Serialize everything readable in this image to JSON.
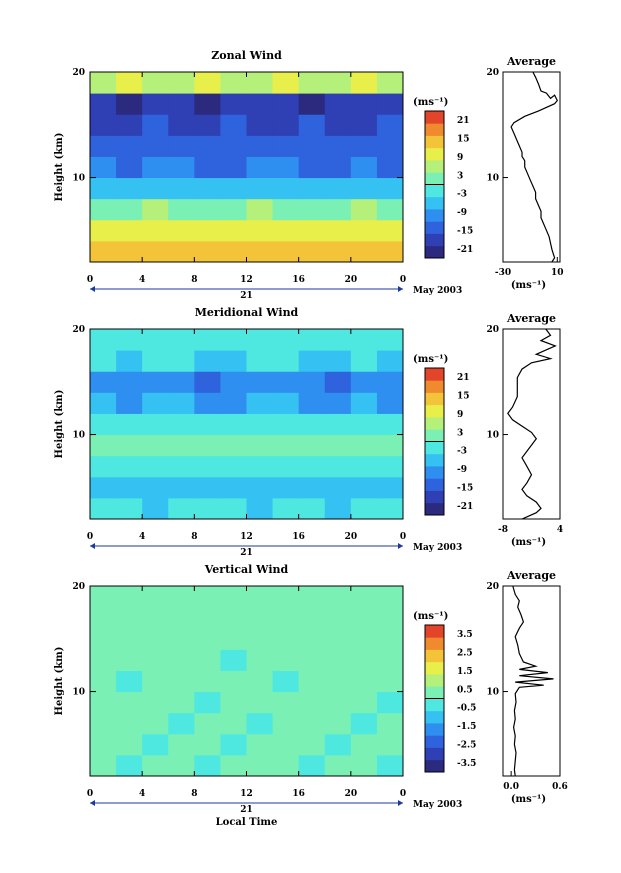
{
  "chart_data": [
    {
      "type": "heatmap",
      "title": "Zonal Wind",
      "ylabel": "Height (km)",
      "xlabel": "",
      "x_ticks": [
        "0",
        "4",
        "8",
        "12",
        "16",
        "20",
        "0"
      ],
      "y_ticks": [
        "20",
        "10"
      ],
      "xlim": [
        0,
        24
      ],
      "ylim": [
        2,
        20
      ],
      "date_label": "21",
      "month_label": "May 2003",
      "colorbar": {
        "unit_label": "(ms⁻¹)",
        "ticks": [
          "21",
          "15",
          "9",
          "3",
          "-3",
          "-9",
          "-15",
          "-21"
        ],
        "range": [
          -24,
          24
        ]
      },
      "profile": {
        "title": "Average",
        "x_ticks": [
          "-30",
          "10"
        ],
        "y_ticks": [
          "20",
          "10"
        ],
        "xlim": [
          -30,
          12
        ],
        "unit_label": "(ms⁻¹)",
        "points": [
          [
            -8,
            20
          ],
          [
            -6,
            19.5
          ],
          [
            -4,
            18.9
          ],
          [
            -2,
            18.2
          ],
          [
            2,
            18.0
          ],
          [
            5,
            17.5
          ],
          [
            8,
            17.8
          ],
          [
            10,
            17.3
          ],
          [
            8,
            17.0
          ],
          [
            -4,
            16.3
          ],
          [
            -14,
            15.8
          ],
          [
            -22,
            15.2
          ],
          [
            -24,
            14.8
          ],
          [
            -22,
            14.2
          ],
          [
            -20,
            13.6
          ],
          [
            -18,
            13.0
          ],
          [
            -16,
            12.4
          ],
          [
            -16,
            12.0
          ],
          [
            -14,
            11.6
          ],
          [
            -14,
            11.0
          ],
          [
            -12,
            10.4
          ],
          [
            -10,
            9.8
          ],
          [
            -8,
            9.2
          ],
          [
            -6,
            8.6
          ],
          [
            -6,
            8.0
          ],
          [
            -4,
            7.4
          ],
          [
            -2,
            6.8
          ],
          [
            -2,
            6.2
          ],
          [
            0,
            5.6
          ],
          [
            2,
            5.0
          ],
          [
            4,
            4.4
          ],
          [
            5,
            3.8
          ],
          [
            6,
            3.2
          ],
          [
            7,
            2.8
          ],
          [
            8,
            2.4
          ],
          [
            6,
            2.0
          ]
        ]
      },
      "field": {
        "x_hours": [
          0,
          2,
          4,
          6,
          8,
          10,
          12,
          14,
          16,
          18,
          20,
          22
        ],
        "heights_km": [
          2,
          4,
          6,
          8,
          10,
          12,
          14,
          16,
          18
        ],
        "values": [
          [
            14,
            13,
            12,
            13,
            14,
            13,
            12,
            13,
            14,
            13,
            12,
            13
          ],
          [
            9,
            8,
            9,
            10,
            9,
            8,
            9,
            10,
            9,
            8,
            9,
            8
          ],
          [
            3,
            2,
            4,
            3,
            2,
            3,
            4,
            3,
            2,
            3,
            4,
            3
          ],
          [
            -6,
            -7,
            -5,
            -6,
            -8,
            -7,
            -6,
            -5,
            -7,
            -8,
            -6,
            -7
          ],
          [
            -12,
            -13,
            -11,
            -12,
            -14,
            -13,
            -12,
            -11,
            -13,
            -14,
            -12,
            -13
          ],
          [
            -15,
            -14,
            -16,
            -15,
            -13,
            -14,
            -16,
            -15,
            -14,
            -13,
            -15,
            -16
          ],
          [
            -18,
            -17,
            -16,
            -18,
            -17,
            -16,
            -18,
            -17,
            -16,
            -18,
            -17,
            -16
          ],
          [
            -20,
            -21,
            -20,
            -19,
            -21,
            -20,
            -19,
            -20,
            -21,
            -20,
            -19,
            -20
          ],
          [
            6,
            8,
            5,
            7,
            9,
            6,
            5,
            8,
            7,
            6,
            9,
            7
          ]
        ]
      }
    },
    {
      "type": "heatmap",
      "title": "Meridional Wind",
      "ylabel": "Height (km)",
      "xlabel": "",
      "x_ticks": [
        "0",
        "4",
        "8",
        "12",
        "16",
        "20",
        "0"
      ],
      "y_ticks": [
        "20",
        "10"
      ],
      "xlim": [
        0,
        24
      ],
      "ylim": [
        2,
        20
      ],
      "date_label": "21",
      "month_label": "May 2003",
      "colorbar": {
        "unit_label": "(ms⁻¹)",
        "ticks": [
          "21",
          "15",
          "9",
          "3",
          "-3",
          "-9",
          "-15",
          "-21"
        ],
        "range": [
          -24,
          24
        ]
      },
      "profile": {
        "title": "Average",
        "x_ticks": [
          "-8",
          "4"
        ],
        "y_ticks": [
          "20",
          "10"
        ],
        "xlim": [
          -8,
          4
        ],
        "unit_label": "(ms⁻¹)",
        "points": [
          [
            1,
            20
          ],
          [
            2,
            19.4
          ],
          [
            0,
            18.9
          ],
          [
            3,
            18.4
          ],
          [
            1,
            18.0
          ],
          [
            -1,
            17.6
          ],
          [
            2,
            17.2
          ],
          [
            -2,
            16.8
          ],
          [
            -4,
            16.2
          ],
          [
            -5,
            15.4
          ],
          [
            -5,
            14.6
          ],
          [
            -5,
            13.6
          ],
          [
            -6,
            12.6
          ],
          [
            -7,
            12.0
          ],
          [
            -6,
            11.4
          ],
          [
            -4,
            10.8
          ],
          [
            -2,
            10.2
          ],
          [
            -1,
            9.6
          ],
          [
            -2,
            9.0
          ],
          [
            -3,
            8.4
          ],
          [
            -4,
            7.8
          ],
          [
            -3,
            7.0
          ],
          [
            -2,
            6.2
          ],
          [
            -3,
            5.4
          ],
          [
            -4,
            4.8
          ],
          [
            -3,
            4.2
          ],
          [
            -1,
            3.6
          ],
          [
            0,
            3.0
          ],
          [
            -1,
            2.6
          ],
          [
            -3,
            2.2
          ],
          [
            -4,
            2.0
          ]
        ]
      },
      "field": {
        "x_hours": [
          0,
          2,
          4,
          6,
          8,
          10,
          12,
          14,
          16,
          18,
          20,
          22
        ],
        "heights_km": [
          2,
          4,
          6,
          8,
          10,
          12,
          14,
          16,
          18
        ],
        "values": [
          [
            -4,
            -3,
            -5,
            -4,
            -3,
            -4,
            -5,
            -3,
            -4,
            -5,
            -4,
            -3
          ],
          [
            -6,
            -5,
            -7,
            -6,
            -5,
            -6,
            -7,
            -5,
            -6,
            -7,
            -6,
            -5
          ],
          [
            -2,
            -1,
            -3,
            -2,
            -1,
            -2,
            -3,
            -1,
            -2,
            -3,
            -2,
            -1
          ],
          [
            1,
            2,
            0,
            1,
            2,
            1,
            0,
            2,
            1,
            0,
            1,
            2
          ],
          [
            -3,
            -4,
            -2,
            -3,
            -4,
            -3,
            -2,
            -4,
            -3,
            -2,
            -3,
            -4
          ],
          [
            -8,
            -9,
            -7,
            -8,
            -10,
            -9,
            -8,
            -7,
            -9,
            -10,
            -8,
            -9
          ],
          [
            -11,
            -12,
            -10,
            -11,
            -13,
            -12,
            -11,
            -10,
            -12,
            -13,
            -11,
            -12
          ],
          [
            -4,
            -5,
            -3,
            -4,
            -6,
            -5,
            -4,
            -3,
            -5,
            -6,
            -4,
            -5
          ],
          [
            -2,
            -1,
            -3,
            -2,
            -1,
            -2,
            -3,
            -1,
            -2,
            -3,
            -2,
            -1
          ]
        ]
      }
    },
    {
      "type": "heatmap",
      "title": "Vertical Wind",
      "ylabel": "Height (km)",
      "xlabel": "Local Time",
      "x_ticks": [
        "0",
        "4",
        "8",
        "12",
        "16",
        "20",
        "0"
      ],
      "y_ticks": [
        "20",
        "10"
      ],
      "xlim": [
        0,
        24
      ],
      "ylim": [
        2,
        20
      ],
      "date_label": "21",
      "month_label": "May 2003",
      "colorbar": {
        "unit_label": "(ms⁻¹)",
        "ticks": [
          "3.5",
          "2.5",
          "1.5",
          "0.5",
          "-0.5",
          "-1.5",
          "-2.5",
          "-3.5"
        ],
        "range": [
          -4,
          4
        ]
      },
      "profile": {
        "title": "Average",
        "x_ticks": [
          "0.0",
          "0.6"
        ],
        "y_ticks": [
          "20",
          "10"
        ],
        "xlim": [
          -0.1,
          0.6
        ],
        "unit_label": "(ms⁻¹)",
        "points": [
          [
            0.02,
            20
          ],
          [
            0.05,
            19.2
          ],
          [
            0.1,
            18.6
          ],
          [
            0.08,
            18.0
          ],
          [
            0.12,
            17.3
          ],
          [
            0.15,
            16.6
          ],
          [
            0.1,
            16.0
          ],
          [
            0.05,
            15.2
          ],
          [
            0.08,
            14.4
          ],
          [
            0.1,
            13.6
          ],
          [
            0.15,
            12.8
          ],
          [
            0.3,
            12.4
          ],
          [
            0.1,
            12.1
          ],
          [
            0.45,
            11.8
          ],
          [
            0.1,
            11.5
          ],
          [
            0.52,
            11.2
          ],
          [
            0.05,
            10.9
          ],
          [
            0.4,
            10.6
          ],
          [
            0.1,
            10.4
          ],
          [
            0.05,
            9.8
          ],
          [
            0.06,
            9.0
          ],
          [
            0.04,
            8.2
          ],
          [
            0.05,
            7.4
          ],
          [
            0.03,
            6.6
          ],
          [
            0.05,
            5.8
          ],
          [
            0.04,
            5.0
          ],
          [
            0.06,
            4.2
          ],
          [
            0.05,
            3.4
          ],
          [
            0.04,
            2.6
          ],
          [
            0.05,
            2.0
          ]
        ]
      },
      "field": {
        "x_hours": [
          0,
          2,
          4,
          6,
          8,
          10,
          12,
          14,
          16,
          18,
          20,
          22
        ],
        "heights_km": [
          2,
          4,
          6,
          8,
          10,
          12,
          14,
          16,
          18
        ],
        "values": [
          [
            0.2,
            -0.2,
            0.3,
            0.1,
            -0.1,
            0.2,
            0.0,
            0.3,
            -0.2,
            0.1,
            0.2,
            -0.1
          ],
          [
            0.1,
            0.3,
            -0.2,
            0.2,
            0.0,
            -0.1,
            0.3,
            0.1,
            0.2,
            -0.2,
            0.1,
            0.0
          ],
          [
            0.3,
            0.0,
            0.2,
            -0.1,
            0.2,
            0.1,
            -0.2,
            0.2,
            0.1,
            0.3,
            -0.1,
            0.2
          ],
          [
            0.0,
            0.2,
            0.1,
            0.3,
            -0.2,
            0.2,
            0.1,
            0.0,
            0.3,
            0.1,
            0.2,
            -0.1
          ],
          [
            0.2,
            -0.1,
            0.3,
            0.0,
            0.2,
            0.1,
            0.3,
            -0.2,
            0.1,
            0.2,
            0.0,
            0.3
          ],
          [
            0.1,
            0.2,
            0.0,
            0.3,
            0.1,
            -0.1,
            0.2,
            0.3,
            0.0,
            0.1,
            0.3,
            0.2
          ],
          [
            0.3,
            0.1,
            0.2,
            0.0,
            0.3,
            0.2,
            0.1,
            0.2,
            0.3,
            0.0,
            0.1,
            0.2
          ],
          [
            0.2,
            0.3,
            0.1,
            0.2,
            0.0,
            0.3,
            0.2,
            0.1,
            0.2,
            0.3,
            0.2,
            0.1
          ],
          [
            0.1,
            0.2,
            0.3,
            0.1,
            0.2,
            0.0,
            0.3,
            0.2,
            0.1,
            0.2,
            0.3,
            0.1
          ]
        ]
      }
    }
  ]
}
